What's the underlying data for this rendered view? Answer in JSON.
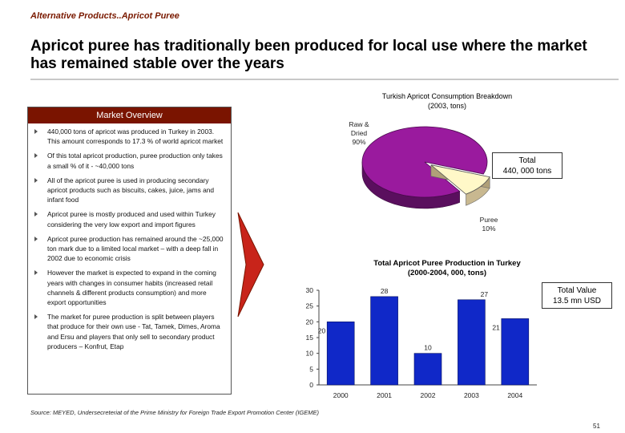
{
  "breadcrumb": "Alternative Products..Apricot Puree",
  "title": "Apricot puree has traditionally been produced for local use where the market has remained stable over the years",
  "overview": {
    "header": "Market Overview",
    "bullets": [
      "440,000 tons of apricot was produced in Turkey in 2003. This amount corresponds to 17.3 % of world apricot market",
      "Of this total apricot production, puree production only takes a small % of it - ~40,000 tons",
      "All of the apricot puree is used in producing secondary apricot products such as biscuits, cakes, juice, jams and infant food",
      "Apricot puree is mostly produced and used within Turkey considering the very low export and import figures",
      "Apricot puree production has remained around the ~25,000 ton mark due to a limited local market – with a deep fall in 2002 due to economic crisis",
      "However the market is expected to expand in the coming years with changes in consumer habits (increased retail channels & different products consumption) and more export opportunities",
      "The market for puree production is split between players that produce for their own use - Tat, Tamek, Dimes, Aroma and Ersu and players that only sell to secondary product producers – Konfrut, Etap"
    ]
  },
  "pie": {
    "title_line1": "Turkish Apricot Consumption Breakdown",
    "title_line2": "(2003, tons)",
    "total_line1": "Total",
    "total_line2": "440, 000 tons",
    "label_raw_line1": "Raw &",
    "label_raw_line2": "Dried",
    "label_raw_pct": "90%",
    "label_puree_line1": "Puree",
    "label_puree_pct": "10%"
  },
  "bar": {
    "title_line1": "Total Apricot Puree Production in Turkey",
    "title_line2": "(2000-2004, 000, tons)",
    "value_line1": "Total Value",
    "value_line2": "13.5 mn USD"
  },
  "chart_data": [
    {
      "type": "pie",
      "title": "Turkish Apricot Consumption Breakdown (2003, tons)",
      "labels": [
        "Raw & Dried",
        "Puree"
      ],
      "values": [
        90,
        10
      ],
      "colors": [
        "#9a1a9e",
        "#fff8c8"
      ],
      "annotation": "Total 440, 000 tons"
    },
    {
      "type": "bar",
      "title": "Total Apricot Puree Production in Turkey (2000-2004, 000, tons)",
      "categories": [
        "2000",
        "2001",
        "2002",
        "2003",
        "2004"
      ],
      "values": [
        20,
        28,
        10,
        27,
        21
      ],
      "yticks": [
        "0",
        "5",
        "10",
        "15",
        "20",
        "25",
        "30"
      ],
      "ylim": [
        0,
        30
      ],
      "color": "#1028c8",
      "annotation": "Total Value 13.5 mn USD"
    }
  ],
  "source": "Source:  MEYED, Undersecreteriat of the Prime Ministry for Foreign Trade Export Promotion Center (IGEME)",
  "page_number": "51"
}
